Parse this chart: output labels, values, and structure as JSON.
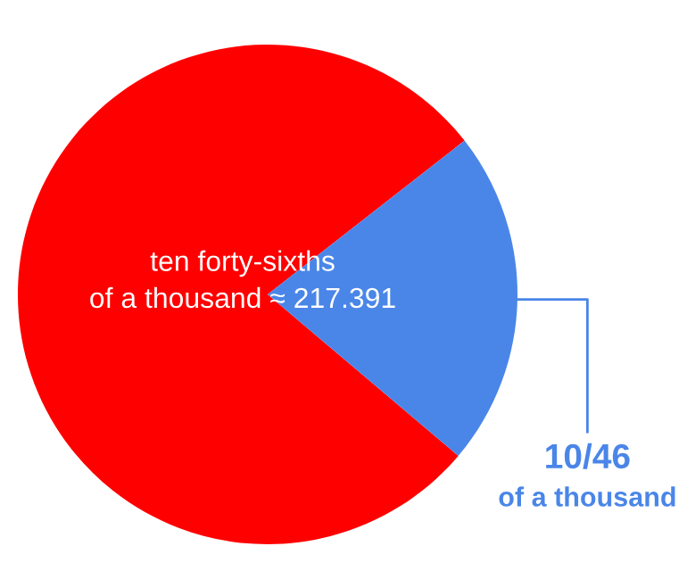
{
  "chart_data": {
    "type": "pie",
    "categories": [
      null,
      "10/46"
    ],
    "values": [
      78.26,
      21.74
    ],
    "colors": [
      "#ff0000",
      "#4a86e8"
    ],
    "annotations": [
      "ten forty-sixths\nof a thousand ≈ 217.391",
      "of a thousand"
    ]
  }
}
